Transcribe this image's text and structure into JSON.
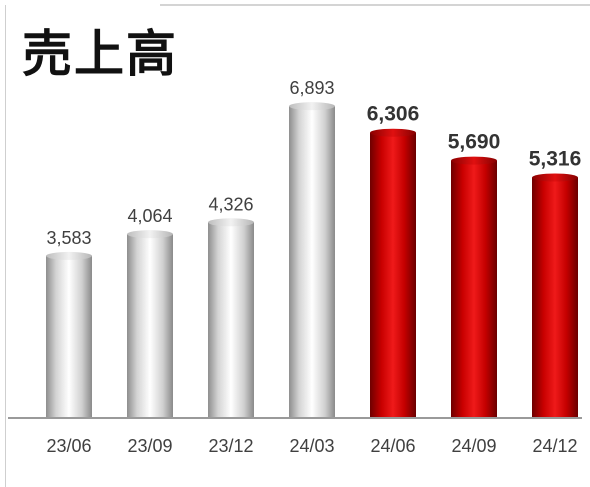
{
  "title": "売上高",
  "chart_data": {
    "type": "bar",
    "title": "売上高",
    "categories": [
      "23/06",
      "23/09",
      "23/12",
      "24/03",
      "24/06",
      "24/09",
      "24/12"
    ],
    "values": [
      3583,
      4064,
      4326,
      6893,
      6306,
      5690,
      5316
    ],
    "value_labels": [
      "3,583",
      "4,064",
      "4,326",
      "6,893",
      "6,306",
      "5,690",
      "5,316"
    ],
    "highlighted": [
      false,
      false,
      false,
      false,
      true,
      true,
      true
    ],
    "colors": {
      "normal": "#d6d6d6",
      "highlight": "#c00000",
      "axis": "#9a9a9a"
    },
    "ylim": [
      0,
      7250
    ],
    "grid": false,
    "xlabel": "",
    "ylabel": ""
  }
}
